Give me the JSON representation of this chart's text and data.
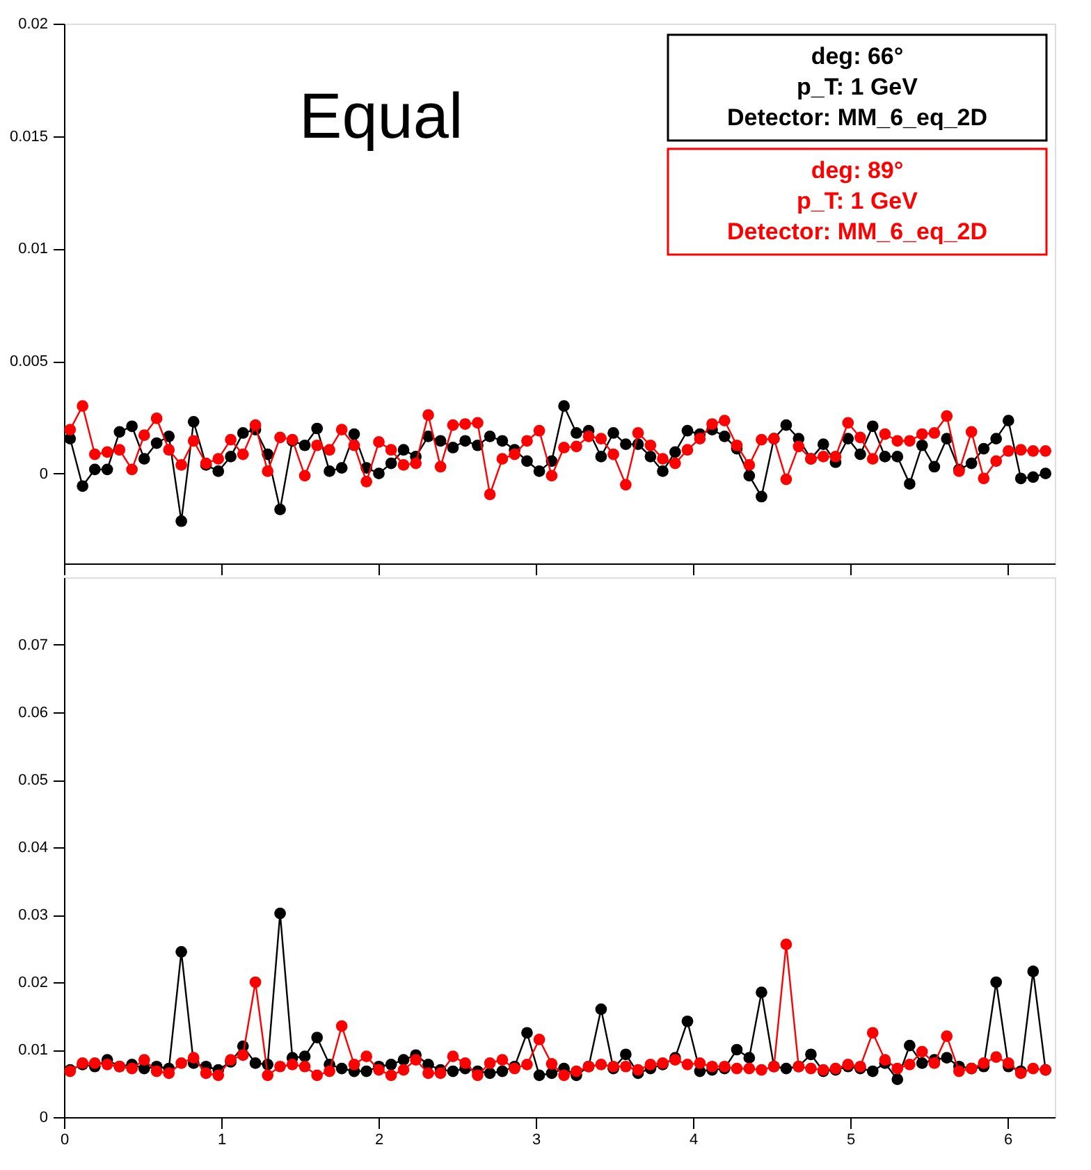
{
  "chart_data": [
    {
      "type": "line",
      "title": "Equal",
      "legend": "top right",
      "marker": "circle",
      "line_style": "solid",
      "grid": false,
      "tick_labels": "y",
      "annotations": [
        "p_T: 1 GeV",
        "Detector: MM_6_eq_2D",
        "p_T: 1 GeV",
        "Detector: MM_6_eq_2D"
      ],
      "xlim": [
        0,
        6.3
      ],
      "xticks": [
        0,
        1,
        2,
        3,
        4,
        5,
        6
      ],
      "ylim": [
        -0.004,
        0.02
      ],
      "yticks": [
        0,
        0.005,
        0.01,
        0.015,
        0.02
      ],
      "x": [
        0.039,
        0.118,
        0.196,
        0.275,
        0.353,
        0.432,
        0.51,
        0.589,
        0.667,
        0.746,
        0.824,
        0.903,
        0.981,
        1.06,
        1.138,
        1.217,
        1.295,
        1.374,
        1.452,
        1.531,
        1.609,
        1.688,
        1.766,
        1.845,
        1.923,
        2.002,
        2.08,
        2.159,
        2.237,
        2.316,
        2.394,
        2.473,
        2.551,
        2.63,
        2.708,
        2.787,
        2.865,
        2.944,
        3.022,
        3.101,
        3.179,
        3.258,
        3.336,
        3.415,
        3.493,
        3.572,
        3.65,
        3.729,
        3.807,
        3.886,
        3.964,
        4.043,
        4.121,
        4.2,
        4.278,
        4.357,
        4.435,
        4.514,
        4.592,
        4.671,
        4.749,
        4.828,
        4.906,
        4.985,
        5.063,
        5.142,
        5.22,
        5.299,
        5.377,
        5.456,
        5.534,
        5.613,
        5.691,
        5.77,
        5.848,
        5.927,
        6.005,
        6.084,
        6.162,
        6.241
      ],
      "series": [
        {
          "name": "deg: 66°",
          "color": "#000000",
          "values": [
            0.00155,
            -0.00056,
            0.00018,
            0.00018,
            0.00185,
            0.0021,
            0.00065,
            0.00135,
            0.00165,
            -0.00212,
            0.0023,
            0.00038,
            0.0001,
            0.00075,
            0.0018,
            0.00195,
            0.00085,
            -0.0016,
            0.00145,
            0.00125,
            0.002,
            0.0001,
            0.00025,
            0.00175,
            0.00025,
            0.0,
            0.00045,
            0.00105,
            0.00075,
            0.00165,
            0.00145,
            0.00115,
            0.00145,
            0.00125,
            0.00165,
            0.00145,
            0.00105,
            0.00055,
            0.0001,
            0.00055,
            0.003,
            0.0018,
            0.0019,
            0.00075,
            0.0018,
            0.0013,
            0.0013,
            0.00075,
            0.0001,
            0.00095,
            0.0019,
            0.00175,
            0.00195,
            0.00165,
            0.0011,
            -0.0001,
            -0.00103,
            0.00155,
            0.00215,
            0.00155,
            0.00065,
            0.0013,
            0.0005,
            0.00155,
            0.00085,
            0.0021,
            0.00075,
            0.00075,
            -0.00046,
            0.00125,
            0.0003,
            0.00155,
            0.00018,
            0.00045,
            0.0011,
            0.00155,
            0.00235,
            -0.00022,
            -0.00016,
            0.0
          ]
        },
        {
          "name": "deg: 89°",
          "color": "#ff0000",
          "values": [
            0.00195,
            0.003,
            0.00085,
            0.00095,
            0.00105,
            0.00018,
            0.0017,
            0.00245,
            0.00105,
            0.00038,
            0.00145,
            0.00045,
            0.00065,
            0.0015,
            0.00085,
            0.00215,
            0.0001,
            0.0016,
            0.0015,
            -0.0001,
            0.00125,
            0.00105,
            0.00195,
            0.00125,
            -0.00036,
            0.0014,
            0.00105,
            0.00038,
            0.00045,
            0.0026,
            0.0003,
            0.00215,
            0.0022,
            0.00225,
            -0.00093,
            0.00065,
            0.00085,
            0.00145,
            0.0019,
            -0.0001,
            0.00115,
            0.0012,
            0.00165,
            0.00155,
            0.00085,
            -0.0005,
            0.0018,
            0.00125,
            0.00065,
            0.00045,
            0.00105,
            0.00155,
            0.0022,
            0.00235,
            0.00125,
            0.00038,
            0.0015,
            0.00155,
            -0.00026,
            0.0012,
            0.00065,
            0.00075,
            0.00075,
            0.00225,
            0.0016,
            0.00065,
            0.00175,
            0.00145,
            0.00145,
            0.00175,
            0.0018,
            0.00255,
            0.0001,
            0.00185,
            -0.00022,
            0.00055,
            0.001,
            0.00105,
            0.001,
            0.001
          ]
        }
      ]
    },
    {
      "type": "line",
      "marker": "circle",
      "line_style": "solid",
      "grid": false,
      "xlim": [
        0,
        6.3
      ],
      "xticks": [
        0,
        1,
        2,
        3,
        4,
        5,
        6
      ],
      "ylim": [
        0,
        0.08
      ],
      "yticks": [
        0,
        0.01,
        0.02,
        0.03,
        0.04,
        0.05,
        0.06,
        0.07
      ],
      "x": [
        0.039,
        0.118,
        0.196,
        0.275,
        0.353,
        0.432,
        0.51,
        0.589,
        0.667,
        0.746,
        0.824,
        0.903,
        0.981,
        1.06,
        1.138,
        1.217,
        1.295,
        1.374,
        1.452,
        1.531,
        1.609,
        1.688,
        1.766,
        1.845,
        1.923,
        2.002,
        2.08,
        2.159,
        2.237,
        2.316,
        2.394,
        2.473,
        2.551,
        2.63,
        2.708,
        2.787,
        2.865,
        2.944,
        3.022,
        3.101,
        3.179,
        3.258,
        3.336,
        3.415,
        3.493,
        3.572,
        3.65,
        3.729,
        3.807,
        3.886,
        3.964,
        4.043,
        4.121,
        4.2,
        4.278,
        4.357,
        4.435,
        4.514,
        4.592,
        4.671,
        4.749,
        4.828,
        4.906,
        4.985,
        5.063,
        5.142,
        5.22,
        5.299,
        5.377,
        5.456,
        5.534,
        5.613,
        5.691,
        5.77,
        5.848,
        5.927,
        6.005,
        6.084,
        6.162,
        6.241
      ],
      "series": [
        {
          "color": "#000000",
          "values": [
            0.007,
            0.0078,
            0.0075,
            0.0085,
            0.0075,
            0.0078,
            0.0072,
            0.0075,
            0.0072,
            0.0245,
            0.008,
            0.0075,
            0.007,
            0.0082,
            0.0105,
            0.008,
            0.0078,
            0.0302,
            0.0088,
            0.009,
            0.0118,
            0.0078,
            0.0072,
            0.0068,
            0.0068,
            0.0075,
            0.0078,
            0.0085,
            0.0092,
            0.0078,
            0.007,
            0.0068,
            0.0072,
            0.0068,
            0.0065,
            0.0068,
            0.0075,
            0.0125,
            0.0062,
            0.0065,
            0.0072,
            0.0062,
            0.0075,
            0.016,
            0.0072,
            0.0093,
            0.0065,
            0.0072,
            0.0078,
            0.0088,
            0.0142,
            0.0068,
            0.007,
            0.0072,
            0.01,
            0.0088,
            0.0185,
            0.0075,
            0.0072,
            0.0075,
            0.0093,
            0.0068,
            0.007,
            0.0075,
            0.0072,
            0.0068,
            0.008,
            0.0056,
            0.0106,
            0.008,
            0.0085,
            0.0088,
            0.0075,
            0.0072,
            0.0075,
            0.02,
            0.0075,
            0.0068,
            0.0216,
            0.007
          ]
        },
        {
          "color": "#ff0000",
          "values": [
            0.0068,
            0.008,
            0.008,
            0.0078,
            0.0075,
            0.0072,
            0.0085,
            0.0068,
            0.0065,
            0.008,
            0.0088,
            0.0065,
            0.0062,
            0.0085,
            0.0092,
            0.02,
            0.0062,
            0.0075,
            0.0078,
            0.0075,
            0.0062,
            0.0068,
            0.0135,
            0.0078,
            0.009,
            0.007,
            0.0062,
            0.007,
            0.0085,
            0.0065,
            0.0065,
            0.009,
            0.008,
            0.0062,
            0.008,
            0.0085,
            0.0072,
            0.0078,
            0.0115,
            0.0079,
            0.0062,
            0.0068,
            0.0075,
            0.0078,
            0.0075,
            0.0075,
            0.007,
            0.0078,
            0.008,
            0.0085,
            0.0078,
            0.008,
            0.0075,
            0.0075,
            0.0072,
            0.0072,
            0.007,
            0.0075,
            0.0256,
            0.0075,
            0.0072,
            0.007,
            0.0072,
            0.0078,
            0.0075,
            0.0125,
            0.0085,
            0.0072,
            0.0078,
            0.0097,
            0.008,
            0.012,
            0.0068,
            0.0072,
            0.008,
            0.0089,
            0.008,
            0.0065,
            0.0072,
            0.007
          ]
        }
      ]
    }
  ]
}
